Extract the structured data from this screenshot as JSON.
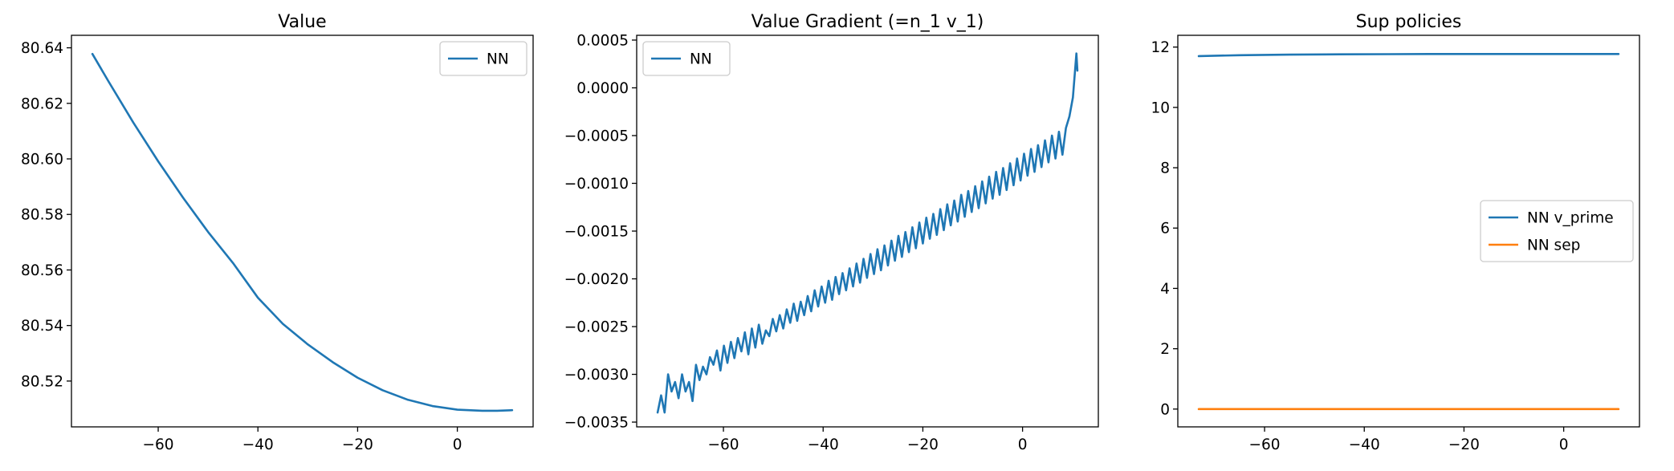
{
  "chart_data": [
    {
      "type": "line",
      "title": "Value",
      "xlabel": "",
      "ylabel": "",
      "xlim": [
        -77.4,
        15.2
      ],
      "ylim": [
        80.5035,
        80.6445
      ],
      "xticks": [
        -60,
        -40,
        -20,
        0
      ],
      "xtick_labels": [
        "−60",
        "−40",
        "−20",
        "0"
      ],
      "yticks": [
        80.52,
        80.54,
        80.56,
        80.58,
        80.6,
        80.62,
        80.64
      ],
      "ytick_labels": [
        "80.52",
        "80.54",
        "80.56",
        "80.58",
        "80.60",
        "80.62",
        "80.64"
      ],
      "legend_position": "upper right",
      "grid": false,
      "series": [
        {
          "name": "NN",
          "color": "#1f77b4",
          "x": [
            -73.2,
            -70,
            -65,
            -60,
            -55,
            -50,
            -45,
            -40,
            -35,
            -30,
            -25,
            -20,
            -15,
            -10,
            -5,
            0,
            5,
            8,
            11
          ],
          "y": [
            80.6378,
            80.628,
            80.6131,
            80.5991,
            80.586,
            80.5737,
            80.5625,
            80.55,
            80.5406,
            80.5332,
            80.5268,
            80.5212,
            80.5167,
            80.5133,
            80.511,
            80.5097,
            80.5093,
            80.5093,
            80.5095
          ]
        }
      ]
    },
    {
      "type": "line",
      "title": "Value Gradient (=n_1 v_1)",
      "xlabel": "",
      "ylabel": "",
      "xlim": [
        -77.4,
        15.2
      ],
      "ylim": [
        -0.00355,
        0.00055
      ],
      "xticks": [
        -60,
        -40,
        -20,
        0
      ],
      "xtick_labels": [
        "−60",
        "−40",
        "−20",
        "0"
      ],
      "yticks": [
        -0.0035,
        -0.003,
        -0.0025,
        -0.002,
        -0.0015,
        -0.001,
        -0.0005,
        0.0,
        0.0005
      ],
      "ytick_labels": [
        "−0.0035",
        "−0.0030",
        "−0.0025",
        "−0.0020",
        "−0.0015",
        "−0.0010",
        "−0.0005",
        "0.0000",
        "0.0005"
      ],
      "legend_position": "upper left",
      "grid": false,
      "series": [
        {
          "name": "NN",
          "color": "#1f77b4",
          "x": [
            -73.2,
            -72.5,
            -71.8,
            -71.1,
            -70.4,
            -69.7,
            -69.0,
            -68.3,
            -67.6,
            -66.9,
            -66.2,
            -65.5,
            -64.8,
            -64.1,
            -63.4,
            -62.7,
            -62.0,
            -61.3,
            -60.6,
            -59.9,
            -59.2,
            -58.5,
            -57.8,
            -57.1,
            -56.4,
            -55.7,
            -55.0,
            -54.3,
            -53.6,
            -52.9,
            -52.2,
            -51.5,
            -50.8,
            -50.1,
            -49.4,
            -48.7,
            -48.0,
            -47.3,
            -46.6,
            -45.9,
            -45.2,
            -44.5,
            -43.8,
            -43.1,
            -42.4,
            -41.7,
            -41.0,
            -40.3,
            -39.6,
            -38.9,
            -38.2,
            -37.5,
            -36.8,
            -36.1,
            -35.4,
            -34.7,
            -34.0,
            -33.3,
            -32.6,
            -31.9,
            -31.2,
            -30.5,
            -29.8,
            -29.1,
            -28.4,
            -27.7,
            -27.0,
            -26.3,
            -25.6,
            -24.9,
            -24.2,
            -23.5,
            -22.8,
            -22.1,
            -21.4,
            -20.7,
            -20.0,
            -19.3,
            -18.6,
            -17.9,
            -17.2,
            -16.5,
            -15.8,
            -15.1,
            -14.4,
            -13.7,
            -13.0,
            -12.3,
            -11.6,
            -10.9,
            -10.2,
            -9.5,
            -8.8,
            -8.1,
            -7.4,
            -6.7,
            -6.0,
            -5.3,
            -4.6,
            -3.9,
            -3.2,
            -2.5,
            -1.8,
            -1.1,
            -0.4,
            0.3,
            1.0,
            1.7,
            2.4,
            3.1,
            3.8,
            4.5,
            5.2,
            5.9,
            6.6,
            7.3,
            8.0,
            8.7,
            9.4,
            10.1,
            10.8,
            11.0
          ],
          "y": [
            -0.0034,
            -0.00322,
            -0.0034,
            -0.003,
            -0.00318,
            -0.00308,
            -0.00325,
            -0.003,
            -0.00318,
            -0.00308,
            -0.00328,
            -0.0029,
            -0.00306,
            -0.00292,
            -0.003,
            -0.00282,
            -0.0029,
            -0.00275,
            -0.00296,
            -0.0027,
            -0.00288,
            -0.00266,
            -0.00283,
            -0.00262,
            -0.00276,
            -0.00256,
            -0.00279,
            -0.00252,
            -0.00272,
            -0.00248,
            -0.00268,
            -0.00254,
            -0.0026,
            -0.00242,
            -0.00255,
            -0.00238,
            -0.00252,
            -0.00232,
            -0.00246,
            -0.00226,
            -0.00244,
            -0.00224,
            -0.00238,
            -0.00218,
            -0.00234,
            -0.00212,
            -0.00229,
            -0.00208,
            -0.00225,
            -0.00202,
            -0.00222,
            -0.00198,
            -0.00216,
            -0.00194,
            -0.00212,
            -0.00189,
            -0.00208,
            -0.00184,
            -0.00204,
            -0.00179,
            -0.00199,
            -0.00174,
            -0.00195,
            -0.00169,
            -0.00191,
            -0.00165,
            -0.00186,
            -0.0016,
            -0.00181,
            -0.00155,
            -0.00177,
            -0.00151,
            -0.00172,
            -0.00146,
            -0.00168,
            -0.00141,
            -0.00163,
            -0.00136,
            -0.00158,
            -0.00132,
            -0.00154,
            -0.00127,
            -0.00149,
            -0.00122,
            -0.00144,
            -0.00118,
            -0.0014,
            -0.00112,
            -0.00135,
            -0.00108,
            -0.0013,
            -0.00103,
            -0.00126,
            -0.00098,
            -0.00121,
            -0.00093,
            -0.00116,
            -0.00088,
            -0.00112,
            -0.00084,
            -0.00107,
            -0.00079,
            -0.00102,
            -0.00074,
            -0.00097,
            -0.00069,
            -0.00092,
            -0.00064,
            -0.00088,
            -0.0006,
            -0.00083,
            -0.00055,
            -0.00078,
            -0.0005,
            -0.00074,
            -0.00046,
            -0.0007,
            -0.00042,
            -0.0003,
            -0.0001,
            0.00036,
            0.00018
          ]
        }
      ]
    },
    {
      "type": "line",
      "title": "Sup policies",
      "xlabel": "",
      "ylabel": "",
      "xlim": [
        -77.4,
        15.2
      ],
      "ylim": [
        -0.59,
        12.39
      ],
      "xticks": [
        -60,
        -40,
        -20,
        0
      ],
      "xtick_labels": [
        "−60",
        "−40",
        "−20",
        "0"
      ],
      "yticks": [
        0,
        2,
        4,
        6,
        8,
        10,
        12
      ],
      "ytick_labels": [
        "0",
        "2",
        "4",
        "6",
        "8",
        "10",
        "12"
      ],
      "legend_position": "center right",
      "grid": false,
      "series": [
        {
          "name": "NN v_prime",
          "color": "#1f77b4",
          "x": [
            -73.2,
            -65,
            -55,
            -45,
            -35,
            -25,
            -15,
            -5,
            5,
            11
          ],
          "y": [
            11.7,
            11.73,
            11.75,
            11.76,
            11.765,
            11.77,
            11.77,
            11.77,
            11.77,
            11.77
          ]
        },
        {
          "name": "NN sep",
          "color": "#ff7f0e",
          "x": [
            -73.2,
            11
          ],
          "y": [
            0.0,
            0.0
          ]
        }
      ]
    }
  ]
}
